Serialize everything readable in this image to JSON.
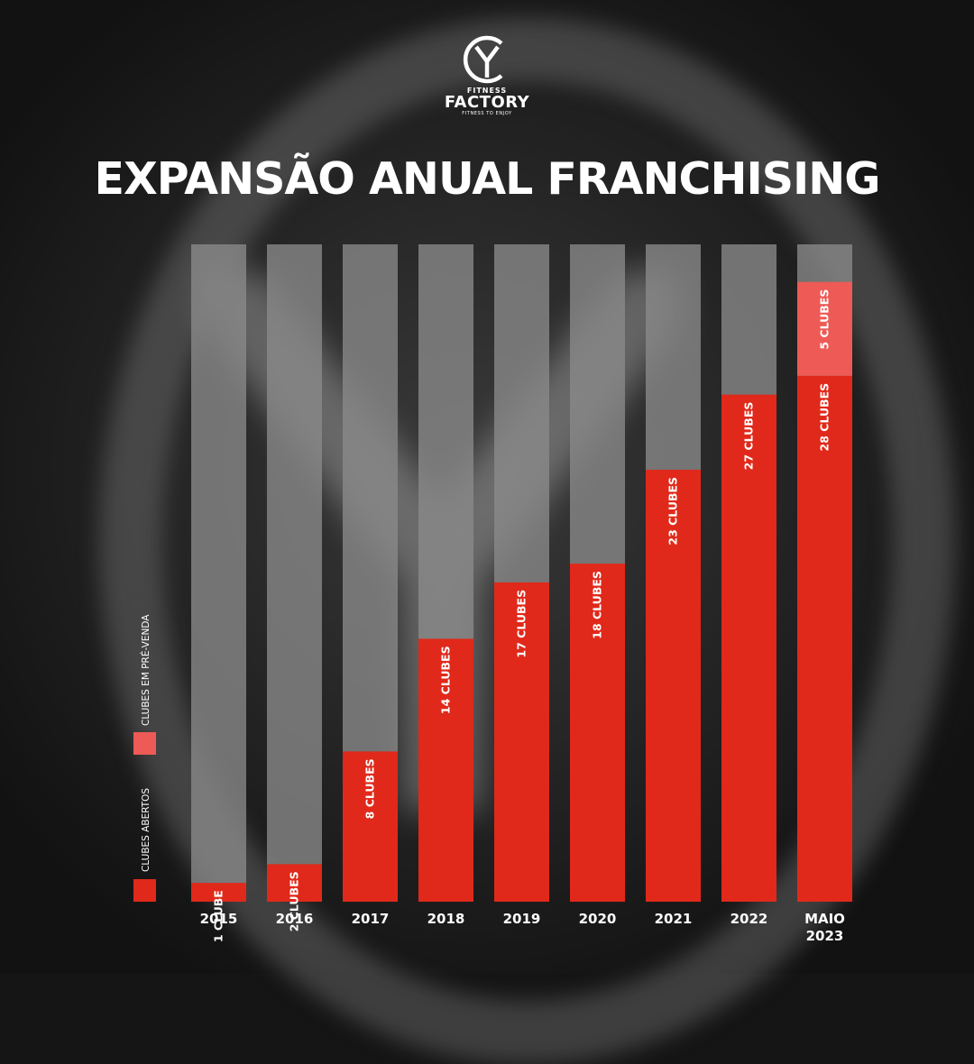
{
  "brand": {
    "name_top": "FITNESS",
    "name_main": "FACTORY",
    "tagline": "FITNESS TO ENJOY"
  },
  "colors": {
    "open": "#e0291a",
    "presale": "#ee5a55",
    "track": "#8a8a8a",
    "text": "#ffffff"
  },
  "legend": {
    "open_label": "CLUBES ABERTOS",
    "presale_label": "CLUBES EM PRÉ-VENDA"
  },
  "chart_data": {
    "type": "bar",
    "stacked": true,
    "title": "EXPANSÃO ANUAL FRANCHISING",
    "categories": [
      [
        "2015"
      ],
      [
        "2016"
      ],
      [
        "2017"
      ],
      [
        "2018"
      ],
      [
        "2019"
      ],
      [
        "2020"
      ],
      [
        "2021"
      ],
      [
        "2022"
      ],
      [
        "MAIO",
        "2023"
      ]
    ],
    "series": [
      {
        "name": "CLUBES ABERTOS",
        "values": [
          1,
          2,
          8,
          14,
          17,
          18,
          23,
          27,
          28
        ],
        "labels": [
          "1 CLUBE",
          "2 CLUBES",
          "8 CLUBES",
          "14 CLUBES",
          "17 CLUBES",
          "18 CLUBES",
          "23 CLUBES",
          "27 CLUBES",
          "28 CLUBES"
        ]
      },
      {
        "name": "CLUBES EM PRÉ-VENDA",
        "values": [
          0,
          0,
          0,
          0,
          0,
          0,
          0,
          0,
          5
        ],
        "labels": [
          "",
          "",
          "",
          "",
          "",
          "",
          "",
          "",
          "5 CLUBES"
        ]
      }
    ],
    "ylim": [
      0,
      35
    ],
    "grid": false,
    "legend_position": "left"
  }
}
